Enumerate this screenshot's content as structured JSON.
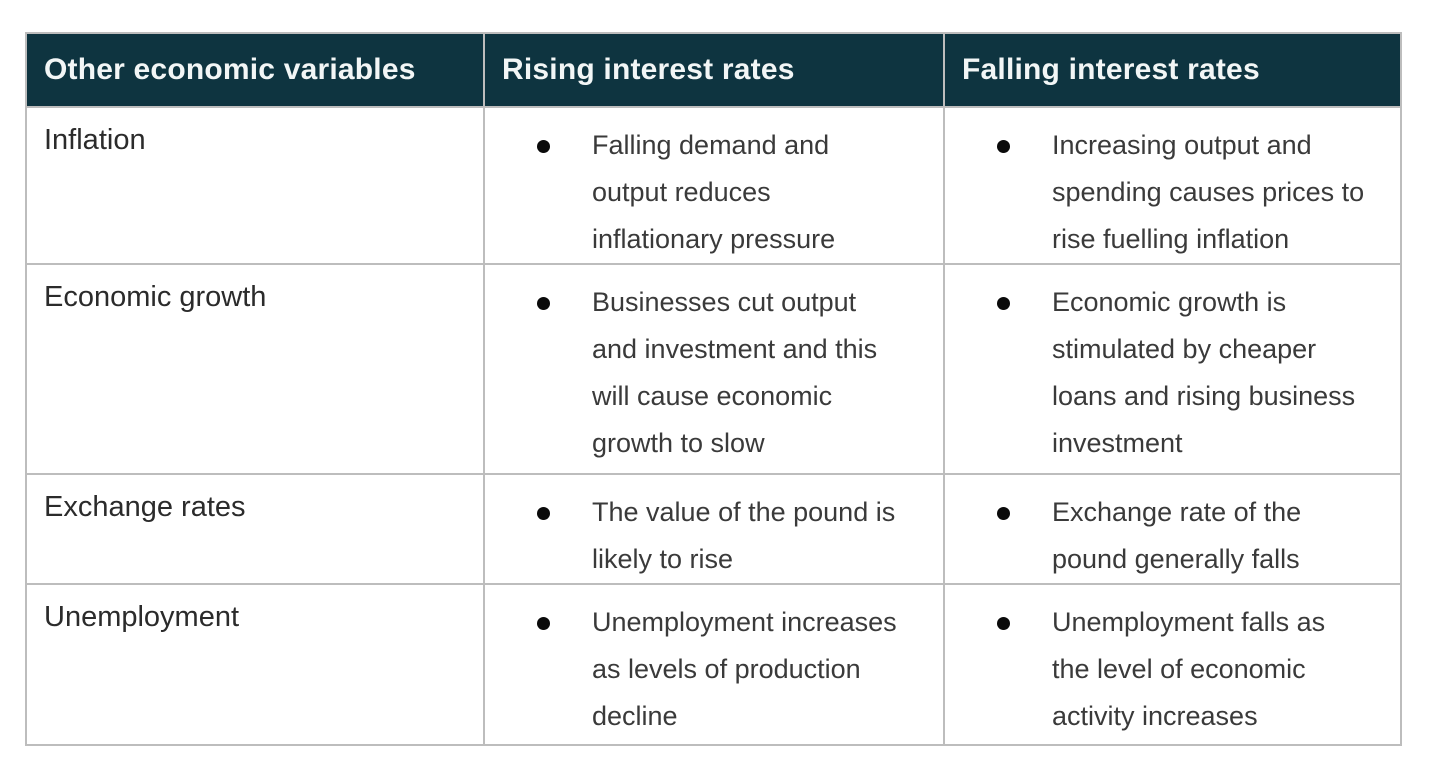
{
  "colors": {
    "header_background": "#0e3440",
    "header_text": "#f2f6f6",
    "body_text": "#3a3a3a",
    "variable_text": "#2b2b2b",
    "border": "#bdbdbd",
    "page_background": "#ffffff"
  },
  "table": {
    "headers": [
      "Other economic variables",
      "Rising interest rates",
      "Falling interest rates"
    ],
    "rows": [
      {
        "variable": "Inflation",
        "rising": "Falling demand and\noutput reduces\ninflationary pressure",
        "falling": "Increasing output and\nspending causes prices to\nrise fuelling inflation"
      },
      {
        "variable": "Economic growth",
        "rising": "Businesses cut output\nand investment and this\nwill cause economic\ngrowth to slow",
        "falling": "Economic growth is\nstimulated by cheaper\nloans and rising business\ninvestment"
      },
      {
        "variable": "Exchange rates",
        "rising": "The value of the pound is\nlikely to rise",
        "falling": "Exchange rate of the\npound generally falls"
      },
      {
        "variable": "Unemployment",
        "rising": "Unemployment increases\nas levels of production\ndecline",
        "falling": "Unemployment falls as\nthe level of economic\nactivity increases"
      }
    ]
  }
}
